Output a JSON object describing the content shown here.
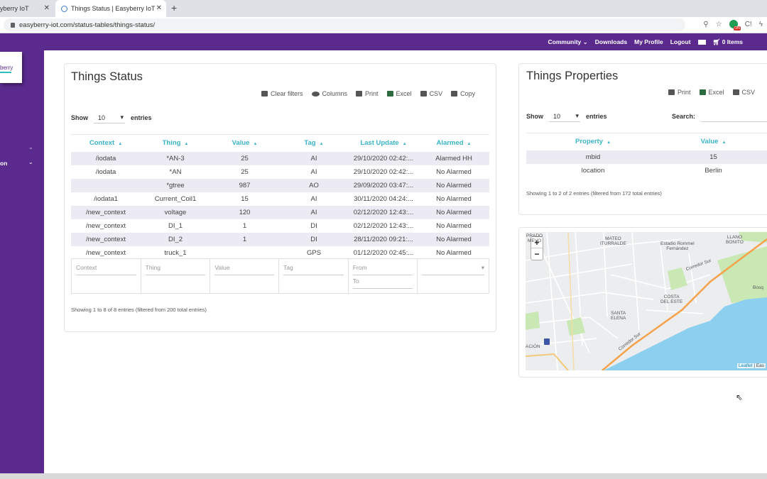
{
  "browser": {
    "tab1_title": "yberry IoT",
    "tab2_title": "Things Status | Easyberry IoT",
    "url": "easyberry-iot.com/status-tables/things-status/",
    "close_glyph": "✕",
    "newtab_glyph": "+"
  },
  "topnav": {
    "community": "Community",
    "downloads": "Downloads",
    "profile": "My Profile",
    "logout": "Logout",
    "cart": "0 Items"
  },
  "sidebar": {
    "logo_text": "berry",
    "item_label": "on"
  },
  "status": {
    "title": "Things Status",
    "toolbar": {
      "clear": "Clear filters",
      "columns": "Columns",
      "print": "Print",
      "excel": "Excel",
      "csv": "CSV",
      "copy": "Copy"
    },
    "show": "Show",
    "entries_value": "10",
    "entries": "entries",
    "columns": [
      "Context",
      "Thing",
      "Value",
      "Tag",
      "Last Update",
      "Alarmed"
    ],
    "rows": [
      [
        "/iodata",
        "*AN-3",
        "25",
        "AI",
        "29/10/2020 02:42:...",
        "Alarmed HH"
      ],
      [
        "/iodata",
        "*AN",
        "25",
        "AI",
        "29/10/2020 02:42:...",
        "No Alarmed"
      ],
      [
        "",
        "*gtree",
        "987",
        "AO",
        "29/09/2020 03:47:...",
        "No Alarmed"
      ],
      [
        "/iodata1",
        "Current_Coil1",
        "15",
        "AI",
        "30/11/2020 04:24:...",
        "No Alarmed"
      ],
      [
        "/new_context",
        "voltage",
        "120",
        "AI",
        "02/12/2020 12:43:...",
        "No Alarmed"
      ],
      [
        "/new_context",
        "DI_1",
        "1",
        "DI",
        "02/12/2020 12:43:...",
        "No Alarmed"
      ],
      [
        "/new_context",
        "DI_2",
        "1",
        "DI",
        "28/11/2020 09:21:...",
        "No Alarmed"
      ],
      [
        "/new_context",
        "truck_1",
        "",
        "GPS",
        "01/12/2020 02:45:...",
        "No Alarmed"
      ]
    ],
    "filters": {
      "context": "Context",
      "thing": "Thing",
      "value": "Value",
      "tag": "Tag",
      "from": "From",
      "to": "To"
    },
    "info": "Showing 1 to 8 of 8 entries (filtered from 200 total entries)"
  },
  "properties": {
    "title": "Things Properties",
    "toolbar": {
      "print": "Print",
      "excel": "Excel",
      "csv": "CSV"
    },
    "show": "Show",
    "entries_value": "10",
    "entries": "entries",
    "search_label": "Search:",
    "columns": [
      "Property",
      "Value"
    ],
    "rows": [
      [
        "mbid",
        "15"
      ],
      [
        "location",
        "Berlin"
      ]
    ],
    "info": "Showing 1 to 2 of 2 entries (filtered from 172 total entries)"
  },
  "map": {
    "zoom_in": "+",
    "zoom_out": "−",
    "labels": {
      "mateo": "MATEO\nITURRALDE",
      "estadio": "Estadio Rommel\nFernández",
      "llano": "LLANO\nBONITO",
      "corredor1": "Corredor Sur",
      "costa": "COSTA\nDEL ESTE",
      "santa": "SANTA\nELENA",
      "corredor2": "Corredor Sur",
      "bosque": "Bosq",
      "acion": "ACIÓN",
      "prado": "PRADO\nMEVO"
    },
    "attribution_leaflet": "Leaflet",
    "attribution_rest": "| Eas"
  }
}
